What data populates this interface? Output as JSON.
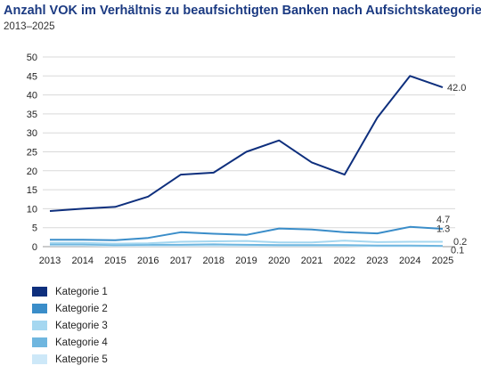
{
  "header": {
    "title": "Anzahl VOK im Verhältnis zu beaufsichtigten Banken nach Aufsichtskategorie",
    "subtitle": "2013–2025"
  },
  "chart_data": {
    "type": "line",
    "title": "Anzahl VOK im Verhältnis zu beaufsichtigten Banken nach Aufsichtskategorie",
    "subtitle": "2013–2025",
    "xlabel": "",
    "ylabel": "",
    "ylim": [
      0,
      50
    ],
    "yticks": [
      0,
      5,
      10,
      15,
      20,
      25,
      30,
      35,
      40,
      45,
      50
    ],
    "grid": true,
    "legend_position": "bottom-left",
    "x": [
      "2013",
      "2014",
      "2015",
      "2016",
      "2017",
      "2018",
      "2019",
      "2020",
      "2021",
      "2022",
      "2023",
      "2024",
      "2025"
    ],
    "series": [
      {
        "name": "Kategorie 1",
        "color": "#0e2f7d",
        "end_label": "42.0",
        "values": [
          9.4,
          10.0,
          10.5,
          13.2,
          19.0,
          19.5,
          25.0,
          28.0,
          22.2,
          19.0,
          34.0,
          45.0,
          42.0
        ]
      },
      {
        "name": "Kategorie 2",
        "color": "#3a8dc9",
        "end_label": "4.7",
        "values": [
          1.8,
          1.8,
          1.7,
          2.3,
          3.8,
          3.4,
          3.1,
          4.8,
          4.5,
          3.8,
          3.5,
          5.2,
          4.7
        ]
      },
      {
        "name": "Kategorie 3",
        "color": "#a5d7f0",
        "end_label": "1.3",
        "values": [
          1.0,
          1.0,
          0.8,
          0.9,
          1.3,
          1.4,
          1.5,
          1.1,
          1.1,
          1.6,
          1.2,
          1.3,
          1.3
        ]
      },
      {
        "name": "Kategorie 4",
        "color": "#6fb6df",
        "end_label": "0.2",
        "values": [
          0.6,
          0.6,
          0.4,
          0.5,
          0.5,
          0.6,
          0.5,
          0.4,
          0.4,
          0.4,
          0.3,
          0.3,
          0.2
        ]
      },
      {
        "name": "Kategorie 5",
        "color": "#cde8f8",
        "end_label": "0.1",
        "values": [
          0.3,
          0.3,
          0.2,
          0.2,
          0.2,
          0.2,
          0.2,
          0.2,
          0.2,
          0.2,
          0.1,
          0.1,
          0.1
        ]
      }
    ]
  }
}
